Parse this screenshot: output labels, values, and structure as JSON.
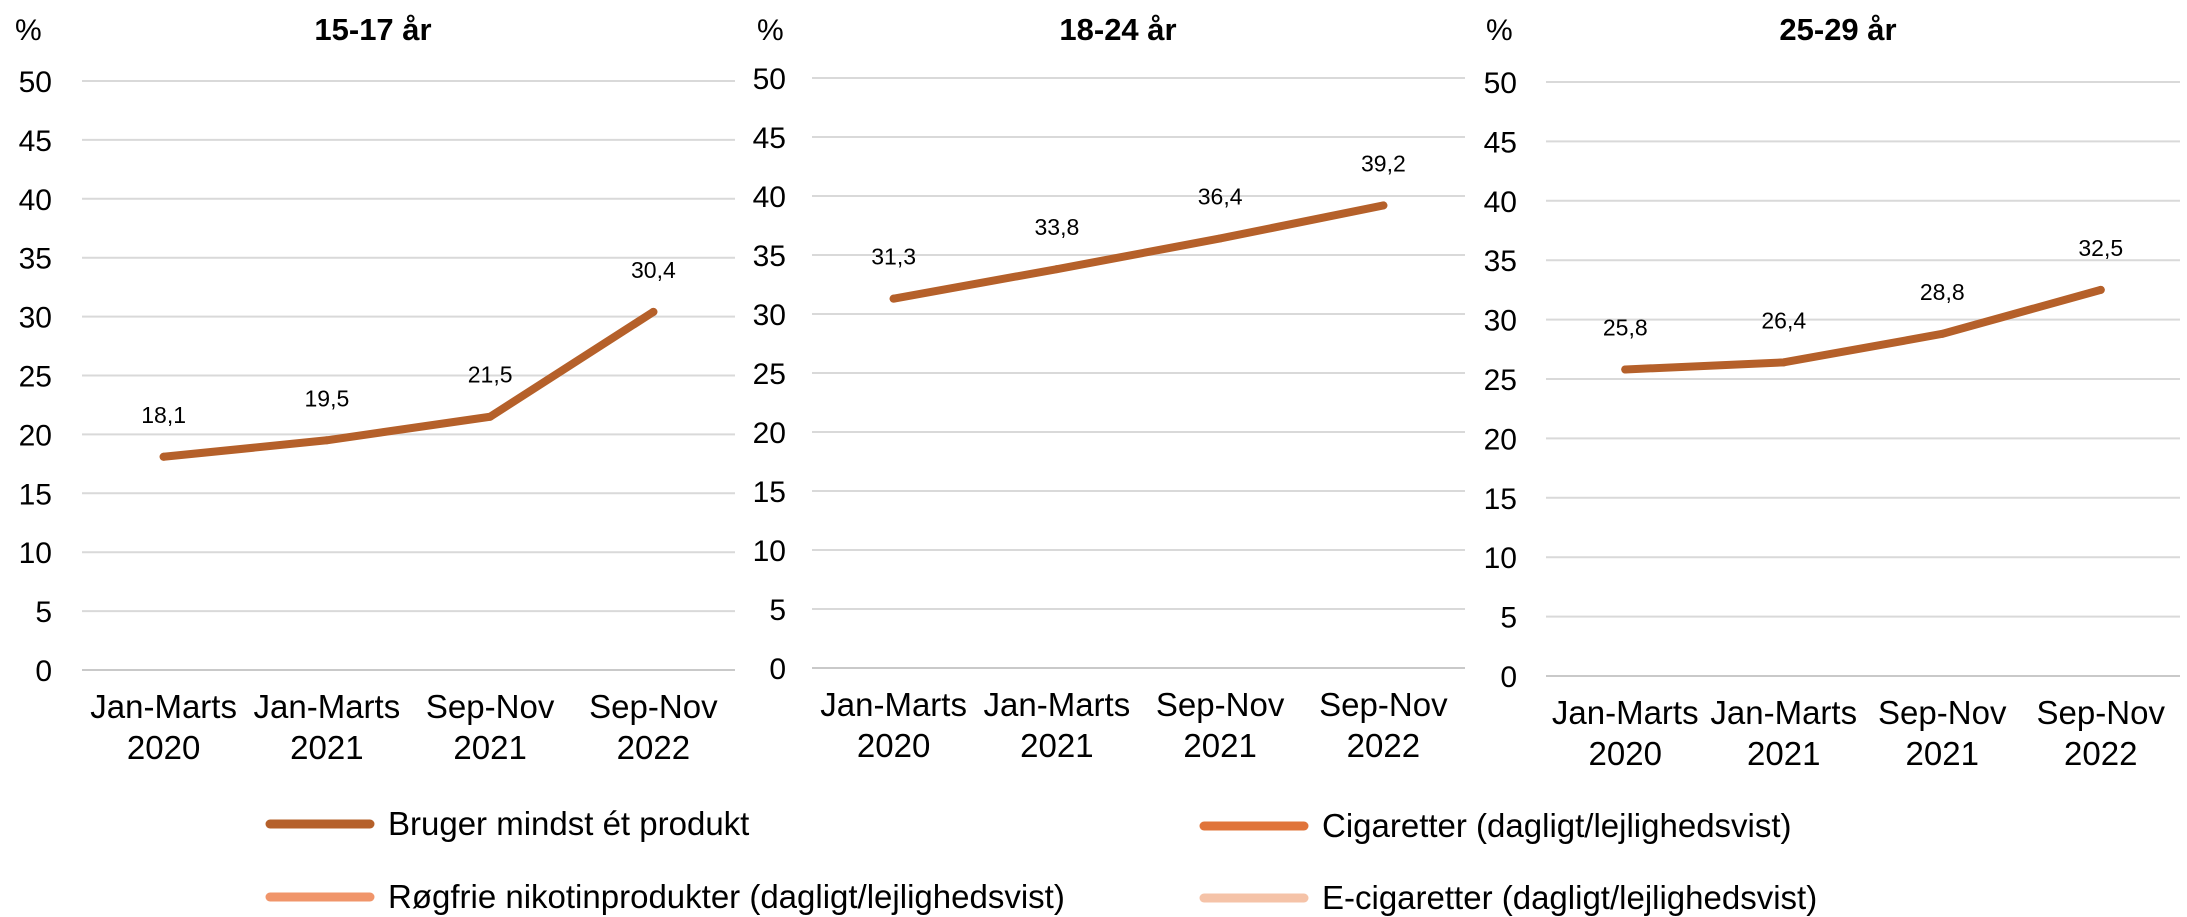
{
  "legend": [
    {
      "name": "Bruger mindst ét produkt",
      "color": "#B5602A"
    },
    {
      "name": "Cigaretter (dagligt/lejlighedsvist)",
      "color": "#E0743A"
    },
    {
      "name": "Røgfrie nikotinprodukter (dagligt/lejlighedsvist)",
      "color": "#F0956A"
    },
    {
      "name": "E-cigaretter (dagligt/lejlighedsvist)",
      "color": "#F5C3A8"
    }
  ],
  "chart_data": [
    {
      "type": "line",
      "title": "15-17 år",
      "ylabel": "%",
      "ylim": [
        0,
        50
      ],
      "yticks": [
        "0",
        "5",
        "10",
        "15",
        "20",
        "25",
        "30",
        "35",
        "40",
        "45",
        "50"
      ],
      "categories": [
        [
          "Jan-Marts",
          "2020"
        ],
        [
          "Jan-Marts",
          "2021"
        ],
        [
          "Sep-Nov",
          "2021"
        ],
        [
          "Sep-Nov",
          "2022"
        ]
      ],
      "grid": true,
      "series": [
        {
          "name": "Bruger mindst ét produkt",
          "values": [
            18.1,
            19.5,
            21.5,
            30.4
          ],
          "labels": [
            "18,1",
            "19,5",
            "21,5",
            "30,4"
          ],
          "color": "#B5602A"
        }
      ]
    },
    {
      "type": "line",
      "title": "18-24 år",
      "ylabel": "%",
      "ylim": [
        0,
        50
      ],
      "yticks": [
        "0",
        "5",
        "10",
        "15",
        "20",
        "25",
        "30",
        "35",
        "40",
        "45",
        "50"
      ],
      "categories": [
        [
          "Jan-Marts",
          "2020"
        ],
        [
          "Jan-Marts",
          "2021"
        ],
        [
          "Sep-Nov",
          "2021"
        ],
        [
          "Sep-Nov",
          "2022"
        ]
      ],
      "grid": true,
      "series": [
        {
          "name": "Bruger mindst ét produkt",
          "values": [
            31.3,
            33.8,
            36.4,
            39.2
          ],
          "labels": [
            "31,3",
            "33,8",
            "36,4",
            "39,2"
          ],
          "color": "#B5602A"
        }
      ]
    },
    {
      "type": "line",
      "title": "25-29 år",
      "ylabel": "%",
      "ylim": [
        0,
        50
      ],
      "yticks": [
        "0",
        "5",
        "10",
        "15",
        "20",
        "25",
        "30",
        "35",
        "40",
        "45",
        "50"
      ],
      "categories": [
        [
          "Jan-Marts",
          "2020"
        ],
        [
          "Jan-Marts",
          "2021"
        ],
        [
          "Sep-Nov",
          "2021"
        ],
        [
          "Sep-Nov",
          "2022"
        ]
      ],
      "grid": true,
      "series": [
        {
          "name": "Bruger mindst ét produkt",
          "values": [
            25.8,
            26.4,
            28.8,
            32.5
          ],
          "labels": [
            "25,8",
            "26,4",
            "28,8",
            "32,5"
          ],
          "color": "#B5602A"
        }
      ]
    }
  ]
}
